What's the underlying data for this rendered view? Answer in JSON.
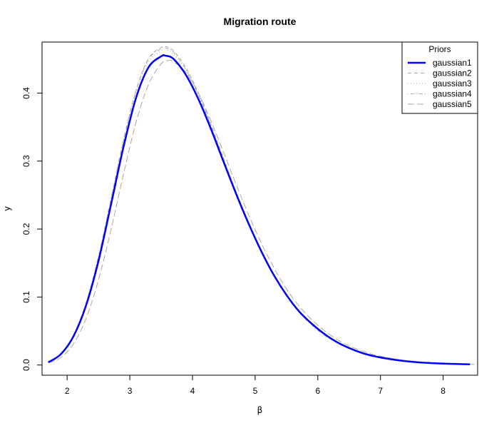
{
  "chart_data": {
    "type": "line",
    "title": "Migration route",
    "xlabel": "β",
    "ylabel": "y",
    "xlim": [
      1.6,
      8.55
    ],
    "ylim": [
      -0.015,
      0.475
    ],
    "x_ticks": [
      2,
      3,
      4,
      5,
      6,
      7,
      8
    ],
    "y_ticks": [
      0.0,
      0.1,
      0.2,
      0.3,
      0.4
    ],
    "grid": false,
    "legend": {
      "title": "Priors",
      "placement": "top-right"
    },
    "series": [
      {
        "name": "gaussian1",
        "style": "solid",
        "color": "#0000FF",
        "line_width": "thick",
        "x": [
          1.7,
          1.9,
          2.1,
          2.3,
          2.5,
          2.7,
          2.9,
          3.1,
          3.3,
          3.5,
          3.57,
          3.7,
          3.9,
          4.1,
          4.3,
          4.5,
          4.7,
          4.9,
          5.1,
          5.3,
          5.5,
          5.7,
          5.9,
          6.1,
          6.3,
          6.5,
          6.7,
          6.9,
          7.1,
          7.3,
          7.5,
          7.7,
          7.9,
          8.1,
          8.3,
          8.43
        ],
        "y": [
          0.004,
          0.016,
          0.042,
          0.087,
          0.153,
          0.236,
          0.321,
          0.393,
          0.438,
          0.454,
          0.455,
          0.45,
          0.426,
          0.39,
          0.346,
          0.298,
          0.251,
          0.207,
          0.167,
          0.132,
          0.103,
          0.079,
          0.061,
          0.046,
          0.034,
          0.025,
          0.018,
          0.013,
          0.0095,
          0.0068,
          0.0048,
          0.0034,
          0.0025,
          0.0018,
          0.0013,
          0.001
        ]
      },
      {
        "name": "gaussian2",
        "style": "dashed",
        "color": "#A8A8A8",
        "line_width": "thin",
        "x": [
          1.7,
          1.9,
          2.1,
          2.3,
          2.5,
          2.7,
          2.9,
          3.1,
          3.3,
          3.5,
          3.58,
          3.7,
          3.9,
          4.1,
          4.3,
          4.5,
          4.7,
          4.9,
          5.1,
          5.3,
          5.5,
          5.7,
          5.9,
          6.1,
          6.3,
          6.5,
          6.7,
          6.9,
          7.1,
          7.3,
          7.5,
          7.7,
          7.9,
          8.1,
          8.3,
          8.43
        ],
        "y": [
          0.004,
          0.016,
          0.043,
          0.09,
          0.158,
          0.243,
          0.33,
          0.404,
          0.451,
          0.467,
          0.468,
          0.462,
          0.437,
          0.399,
          0.353,
          0.303,
          0.254,
          0.209,
          0.168,
          0.133,
          0.103,
          0.079,
          0.06,
          0.045,
          0.033,
          0.024,
          0.017,
          0.012,
          0.0088,
          0.0063,
          0.0045,
          0.0032,
          0.0023,
          0.0016,
          0.0012,
          0.001
        ]
      },
      {
        "name": "gaussian3",
        "style": "dotted",
        "color": "#A8A8A8",
        "line_width": "thin",
        "x": [
          1.7,
          1.9,
          2.1,
          2.3,
          2.5,
          2.7,
          2.9,
          3.1,
          3.3,
          3.5,
          3.58,
          3.7,
          3.9,
          4.1,
          4.3,
          4.5,
          4.7,
          4.9,
          5.1,
          5.3,
          5.5,
          5.7,
          5.9,
          6.1,
          6.3,
          6.5,
          6.7,
          6.9,
          7.1,
          7.3,
          7.5,
          7.7,
          7.9,
          8.1,
          8.3,
          8.43
        ],
        "y": [
          0.004,
          0.016,
          0.042,
          0.089,
          0.156,
          0.24,
          0.326,
          0.399,
          0.446,
          0.462,
          0.463,
          0.457,
          0.433,
          0.396,
          0.351,
          0.302,
          0.254,
          0.209,
          0.169,
          0.134,
          0.104,
          0.08,
          0.061,
          0.046,
          0.034,
          0.025,
          0.018,
          0.013,
          0.0093,
          0.0067,
          0.0048,
          0.0034,
          0.0024,
          0.0017,
          0.0012,
          0.001
        ]
      },
      {
        "name": "gaussian4",
        "style": "dotdash",
        "color": "#A8A8A8",
        "line_width": "thin",
        "x": [
          1.7,
          1.9,
          2.1,
          2.3,
          2.5,
          2.7,
          2.9,
          3.1,
          3.3,
          3.5,
          3.57,
          3.7,
          3.9,
          4.1,
          4.3,
          4.5,
          4.7,
          4.9,
          5.1,
          5.3,
          5.5,
          5.7,
          5.9,
          6.1,
          6.3,
          6.5,
          6.7,
          6.9,
          7.1,
          7.3,
          7.5,
          7.7,
          7.9,
          8.1,
          8.3,
          8.43
        ],
        "y": [
          0.004,
          0.017,
          0.044,
          0.091,
          0.16,
          0.245,
          0.332,
          0.404,
          0.45,
          0.465,
          0.466,
          0.46,
          0.434,
          0.396,
          0.35,
          0.3,
          0.251,
          0.206,
          0.166,
          0.131,
          0.102,
          0.078,
          0.059,
          0.044,
          0.033,
          0.024,
          0.017,
          0.012,
          0.0087,
          0.0062,
          0.0044,
          0.0031,
          0.0022,
          0.0016,
          0.0011,
          0.001
        ]
      },
      {
        "name": "gaussian5",
        "style": "longdash",
        "color": "#A8A8A8",
        "line_width": "thin",
        "x": [
          1.7,
          1.9,
          2.1,
          2.3,
          2.5,
          2.7,
          2.9,
          3.1,
          3.3,
          3.5,
          3.62,
          3.7,
          3.9,
          4.1,
          4.3,
          4.5,
          4.7,
          4.9,
          5.1,
          5.3,
          5.5,
          5.7,
          5.9,
          6.1,
          6.3,
          6.5,
          6.7,
          6.9,
          7.1,
          7.3,
          7.5,
          7.7,
          7.9,
          8.1,
          8.3,
          8.5
        ],
        "y": [
          0.003,
          0.011,
          0.031,
          0.068,
          0.125,
          0.199,
          0.281,
          0.357,
          0.413,
          0.443,
          0.448,
          0.446,
          0.43,
          0.399,
          0.358,
          0.312,
          0.265,
          0.22,
          0.179,
          0.143,
          0.112,
          0.087,
          0.067,
          0.051,
          0.038,
          0.028,
          0.021,
          0.015,
          0.011,
          0.0078,
          0.0056,
          0.004,
          0.0029,
          0.0021,
          0.0015,
          0.001
        ]
      }
    ]
  }
}
